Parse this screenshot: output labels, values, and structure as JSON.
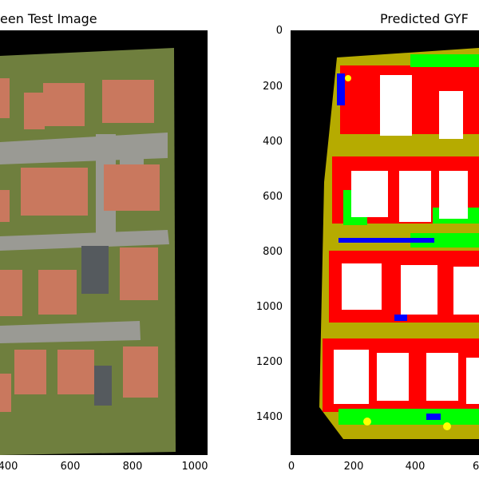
{
  "left_panel": {
    "title": "een Test Image",
    "x_tick_labels": [
      "400",
      "600",
      "800",
      "1000"
    ]
  },
  "right_panel": {
    "title": "Predicted GYF",
    "y_tick_labels": [
      "0",
      "200",
      "400",
      "600",
      "800",
      "1000",
      "1200",
      "1400"
    ],
    "x_tick_labels": [
      "0",
      "200",
      "400",
      "6"
    ]
  },
  "colors": {
    "background_black": "#000000",
    "ground_olive": "#b6ab00",
    "building_red": "#ff0000",
    "roof_white": "#ffffff",
    "grass_green": "#00ff00",
    "water_blue": "#0000ff",
    "aerial_grass": "#6f7f3e",
    "aerial_road": "#9a9a94",
    "aerial_roof": "#c9785e"
  }
}
